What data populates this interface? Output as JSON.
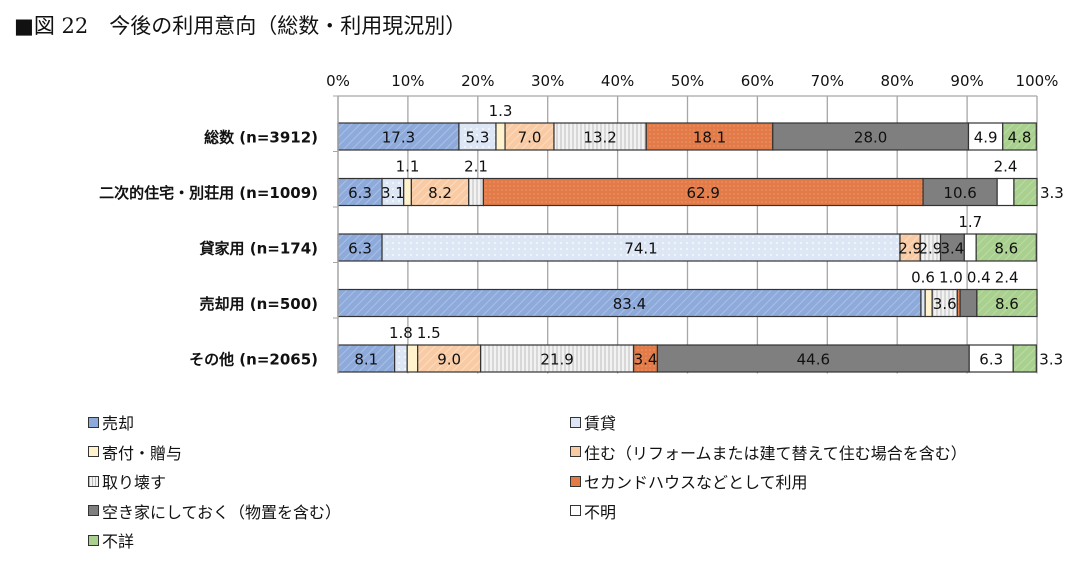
{
  "title": "■図 22　今後の利用意向（総数・利用現況別）",
  "chart_data": {
    "type": "bar",
    "orientation": "horizontal",
    "stacked": true,
    "xlim": [
      0,
      100
    ],
    "x_ticks": [
      "0%",
      "10%",
      "20%",
      "30%",
      "40%",
      "50%",
      "60%",
      "70%",
      "80%",
      "90%",
      "100%"
    ],
    "grid": true,
    "legend_placement": "bottom",
    "categories": [
      "総数 (n=3912)",
      "二次的住宅・別荘用 (n=1009)",
      "貸家用 (n=174)",
      "売却用 (n=500)",
      "その他 (n=2065)"
    ],
    "series": [
      {
        "name": "売却",
        "color": "#8eaadb",
        "values": [
          17.3,
          6.3,
          6.3,
          83.4,
          8.1
        ]
      },
      {
        "name": "賃貸",
        "color": "#dce6f4",
        "values": [
          5.3,
          3.1,
          74.1,
          0.6,
          1.8
        ]
      },
      {
        "name": "寄付・贈与",
        "color": "#fff2cc",
        "values": [
          1.3,
          1.1,
          0,
          1.0,
          1.5
        ]
      },
      {
        "name": "住む（リフォームまたは建て替えて住む場合を含む）",
        "color": "#f9cba4",
        "values": [
          7.0,
          8.2,
          2.9,
          0,
          9.0
        ]
      },
      {
        "name": "取り壊す",
        "color": "#e4e4e4",
        "values": [
          13.2,
          2.1,
          2.9,
          3.6,
          21.9
        ]
      },
      {
        "name": "セカンドハウスなどとして利用",
        "color": "#e27b48",
        "values": [
          18.1,
          62.9,
          0,
          0.4,
          3.4
        ]
      },
      {
        "name": "空き家にしておく（物置を含む）",
        "color": "#7f7f7f",
        "values": [
          28.0,
          10.6,
          3.4,
          2.4,
          44.6
        ]
      },
      {
        "name": "不明",
        "color": "#ffffff",
        "values": [
          4.9,
          2.4,
          1.7,
          0,
          6.3
        ]
      },
      {
        "name": "不詳",
        "color": "#a9d08e",
        "values": [
          4.8,
          3.3,
          8.6,
          8.6,
          3.3
        ]
      }
    ]
  }
}
